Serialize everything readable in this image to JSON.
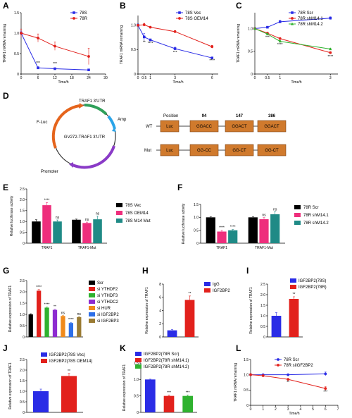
{
  "colors": {
    "blue": "#2a2ce6",
    "red": "#e2211c",
    "green": "#2fb22f",
    "black": "#000000",
    "pink": "#ee2e7c",
    "teal": "#1f8a86",
    "purple": "#8d2bd0",
    "orange": "#f08a1c",
    "lightblue": "#2d6fe8",
    "olive": "#9a7b33",
    "luc": "#d07a2d"
  },
  "chart_data": [
    {
      "id": "A",
      "type": "line",
      "xlabel": "Time/h",
      "ylabel": "TRAF1 mRNA remaining",
      "xlim": [
        0,
        30
      ],
      "ylim": [
        0,
        1.5
      ],
      "xticks": [
        0,
        6,
        12,
        18,
        24,
        30
      ],
      "yticks": [
        0,
        0.5,
        1.0,
        1.5
      ],
      "ytick_labels": [
        "0",
        "0.5",
        "1.0",
        "1.5"
      ],
      "x": [
        0,
        6,
        12,
        24
      ],
      "series": [
        {
          "name": "78S",
          "color": "#2a2ce6",
          "marker": "square",
          "values": [
            1.0,
            0.15,
            0.13,
            0.1
          ],
          "err": [
            0.05,
            0.03,
            0.02,
            0.02
          ]
        },
        {
          "name": "78R",
          "color": "#e2211c",
          "marker": "circle",
          "values": [
            1.0,
            0.88,
            0.68,
            0.43
          ],
          "err": [
            0.1,
            0.1,
            0.1,
            0.2
          ]
        }
      ],
      "annotations": [
        {
          "x": 6,
          "y": 0.24,
          "text": "***"
        },
        {
          "x": 12,
          "y": 0.22,
          "text": "***"
        }
      ]
    },
    {
      "id": "B",
      "type": "line",
      "xlabel": "Time/h",
      "ylabel": "TRAF1 mRNA remaining",
      "xlim": [
        0,
        6.5
      ],
      "ylim": [
        0,
        1.2
      ],
      "xticks": [
        0,
        0.5,
        1,
        3,
        6
      ],
      "yticks": [
        0,
        0.5,
        1.0
      ],
      "ytick_labels": [
        "0",
        "0.5",
        "1.0"
      ],
      "x": [
        0,
        0.5,
        1,
        3,
        6
      ],
      "series": [
        {
          "name": "78S Vec",
          "color": "#2a2ce6",
          "marker": "square",
          "values": [
            1.0,
            0.76,
            0.7,
            0.52,
            0.33
          ],
          "err": [
            0.03,
            0.07,
            0.02,
            0.03,
            0.02
          ]
        },
        {
          "name": "78S OEM14",
          "color": "#e2211c",
          "marker": "circle",
          "values": [
            1.0,
            1.01,
            0.96,
            0.87,
            0.56
          ],
          "err": [
            0.02,
            0.03,
            0.02,
            0.02,
            0.03
          ]
        }
      ],
      "annotations": [
        {
          "x": 0.5,
          "y": 0.63,
          "text": "**"
        },
        {
          "x": 1,
          "y": 0.61,
          "text": "****"
        },
        {
          "x": 3,
          "y": 0.42,
          "text": "***"
        },
        {
          "x": 6,
          "y": 0.25,
          "text": "****"
        }
      ]
    },
    {
      "id": "C",
      "type": "line",
      "xlabel": "Time/h",
      "ylabel": "TRAF1 mRNA remaining",
      "xlim": [
        0,
        3.3
      ],
      "ylim": [
        0,
        1.35
      ],
      "xticks": [
        0,
        0.5,
        1,
        3
      ],
      "yticks": [
        0,
        0.5,
        1.0
      ],
      "ytick_labels": [
        "0",
        "0.5",
        "1.0"
      ],
      "x": [
        0,
        0.5,
        1,
        3
      ],
      "series": [
        {
          "name": "78R Scr",
          "color": "#2a2ce6",
          "marker": "square",
          "values": [
            1.0,
            1.03,
            1.15,
            1.23
          ],
          "err": [
            0.02,
            0.02,
            0.03,
            0.03
          ]
        },
        {
          "name": "78R shM14.1",
          "color": "#e2211c",
          "marker": "circle",
          "values": [
            1.0,
            0.9,
            0.78,
            0.47
          ],
          "err": [
            0.02,
            0.02,
            0.02,
            0.02
          ]
        },
        {
          "name": "78R shM14.2",
          "color": "#2fb22f",
          "marker": "triangle",
          "values": [
            1.0,
            0.88,
            0.72,
            0.55
          ],
          "err": [
            0.02,
            0.02,
            0.02,
            0.02
          ]
        }
      ],
      "annotations": [
        {
          "x": 0.5,
          "y": 0.78,
          "text": "***"
        },
        {
          "x": 1,
          "y": 0.62,
          "text": "****"
        },
        {
          "x": 3,
          "y": 0.36,
          "text": "****"
        }
      ]
    },
    {
      "id": "E",
      "type": "bar",
      "xlabel": "",
      "ylabel": "Relative luciferase activity",
      "ylim": [
        0,
        2.5
      ],
      "yticks": [
        0,
        0.5,
        1.0,
        1.5,
        2.0,
        2.5
      ],
      "ytick_labels": [
        "0",
        "0.5",
        "1.0",
        "1.5",
        "2.0",
        "2.5"
      ],
      "categories": [
        "TRAF1",
        "TRAF1-Mut"
      ],
      "series": [
        {
          "name": "78S Vec",
          "color": "#000000",
          "values": [
            1.0,
            1.08
          ],
          "err": [
            0.08,
            0.03
          ]
        },
        {
          "name": "78S OEM14",
          "color": "#ee2e7c",
          "values": [
            1.75,
            0.93
          ],
          "err": [
            0.12,
            0.04
          ]
        },
        {
          "name": "78S M14 Mut",
          "color": "#1f8a86",
          "values": [
            1.0,
            1.1
          ],
          "err": [
            0.07,
            0.15
          ]
        }
      ],
      "annotations": [
        {
          "category": 0,
          "series": 1,
          "text": "****"
        },
        {
          "category": 0,
          "series": 2,
          "text": "ns"
        },
        {
          "category": 1,
          "series": 1,
          "text": "ns"
        },
        {
          "category": 1,
          "series": 2,
          "text": "ns"
        }
      ]
    },
    {
      "id": "F",
      "type": "bar",
      "xlabel": "",
      "ylabel": "Relative luciferase activity",
      "ylim": [
        0,
        1.5
      ],
      "yticks": [
        0,
        0.5,
        1.0,
        1.5
      ],
      "ytick_labels": [
        "0",
        "0.5",
        "1.0",
        "1.5"
      ],
      "categories": [
        "TRAF1",
        "TRAF1-Mut"
      ],
      "series": [
        {
          "name": "78R Scr",
          "color": "#000000",
          "values": [
            1.0,
            1.0
          ],
          "err": [
            0.02,
            0.03
          ]
        },
        {
          "name": "78R shM14.1",
          "color": "#ee2e7c",
          "values": [
            0.45,
            0.93
          ],
          "err": [
            0.05,
            0.06
          ]
        },
        {
          "name": "78R shM14.2",
          "color": "#1f8a86",
          "values": [
            0.5,
            1.12
          ],
          "err": [
            0.03,
            0.1
          ]
        }
      ],
      "annotations": [
        {
          "category": 0,
          "series": 1,
          "text": "****"
        },
        {
          "category": 0,
          "series": 2,
          "text": "****"
        },
        {
          "category": 1,
          "series": 1,
          "text": "ns"
        },
        {
          "category": 1,
          "series": 2,
          "text": "ns"
        }
      ]
    },
    {
      "id": "G",
      "type": "bar",
      "xlabel": "",
      "ylabel": "Relative expression of TRAF1",
      "ylim": [
        0,
        2.5
      ],
      "yticks": [
        0,
        0.5,
        1.0,
        1.5,
        2.0,
        2.5
      ],
      "ytick_labels": [
        "0",
        "0.5",
        "1.0",
        "1.5",
        "2.0",
        "2.5"
      ],
      "categories": [
        "Scr",
        "si YTHDF2",
        "si YTHDF3",
        "si YTHDC2",
        "si HUR",
        "si IGF2BP2",
        "si IGF2BP3"
      ],
      "colors": [
        "#000000",
        "#e2211c",
        "#2fb22f",
        "#8d2bd0",
        "#f08a1c",
        "#2d6fe8",
        "#9a7b33"
      ],
      "values": [
        1.0,
        2.05,
        1.3,
        1.2,
        0.93,
        0.62,
        0.88
      ],
      "err": [
        0.03,
        0.05,
        0.03,
        0.03,
        0.02,
        0.03,
        0.02
      ],
      "annotations": [
        "",
        "****",
        "****",
        "**",
        "ns",
        "****",
        "ns"
      ]
    },
    {
      "id": "H",
      "type": "bar",
      "xlabel": "",
      "ylabel": "Relative expression of TRAF1",
      "ylim": [
        0,
        8
      ],
      "yticks": [
        0,
        2,
        4,
        6,
        8
      ],
      "ytick_labels": [
        "0",
        "2",
        "4",
        "6",
        "8"
      ],
      "categories": [
        "IgG",
        "IGF2BP2"
      ],
      "colors": [
        "#2a2ce6",
        "#e2211c"
      ],
      "values": [
        1.0,
        5.6
      ],
      "err": [
        0.1,
        0.6
      ],
      "annotations": [
        "",
        "**"
      ]
    },
    {
      "id": "I",
      "type": "bar",
      "xlabel": "",
      "ylabel": "Relative expression of TRAF1",
      "ylim": [
        0,
        2.5
      ],
      "yticks": [
        0,
        0.5,
        1.0,
        1.5,
        2.0,
        2.5
      ],
      "ytick_labels": [
        "0",
        "0.5",
        "1.0",
        "1.5",
        "2.0",
        "2.5"
      ],
      "categories": [
        "IGF2BP2(78S)",
        "IGF2BP2(78R)"
      ],
      "colors": [
        "#2a2ce6",
        "#e2211c"
      ],
      "values": [
        1.0,
        1.8
      ],
      "err": [
        0.15,
        0.1
      ],
      "annotations": [
        "",
        "**"
      ]
    },
    {
      "id": "J",
      "type": "bar",
      "xlabel": "",
      "ylabel": "Relative expression of TRAF1",
      "ylim": [
        0,
        2.5
      ],
      "yticks": [
        0,
        0.5,
        1.0,
        1.5,
        2.0,
        2.5
      ],
      "ytick_labels": [
        "0",
        "0.5",
        "1.0",
        "1.5",
        "2.0",
        "2.5"
      ],
      "categories": [
        "IGF2BP2(78S Vec)",
        "IGF2BP2(78S OEM14)"
      ],
      "colors": [
        "#2a2ce6",
        "#e2211c"
      ],
      "values": [
        1.0,
        1.72
      ],
      "err": [
        0.1,
        0.12
      ],
      "annotations": [
        "",
        "**"
      ]
    },
    {
      "id": "K",
      "type": "bar",
      "xlabel": "",
      "ylabel": "Relative expression of TRAF1",
      "ylim": [
        0,
        1.5
      ],
      "yticks": [
        0,
        0.5,
        1.0,
        1.5
      ],
      "ytick_labels": [
        "0",
        "0.5",
        "1.0",
        "1.5"
      ],
      "categories": [
        "IGF2BP2(78R Scr)",
        "IGF2BP2(78R shM14.1)",
        "IGF2BP2(78R shM14.2)"
      ],
      "colors": [
        "#2a2ce6",
        "#e2211c",
        "#2fb22f"
      ],
      "values": [
        1.0,
        0.5,
        0.5
      ],
      "err": [
        0.01,
        0.03,
        0.03
      ],
      "annotations": [
        "",
        "***",
        "***"
      ]
    },
    {
      "id": "L",
      "type": "line",
      "xlabel": "Time/h",
      "ylabel": "TRAF1 mRNA remaining",
      "xlim": [
        0,
        7
      ],
      "ylim": [
        0,
        1.5
      ],
      "xticks": [
        0,
        1,
        2,
        3,
        4,
        5,
        6,
        7
      ],
      "yticks": [
        0,
        0.5,
        1.0,
        1.5
      ],
      "ytick_labels": [
        "0",
        "0.5",
        "1.0",
        "1.5"
      ],
      "x": [
        0,
        1,
        3,
        6
      ],
      "series": [
        {
          "name": "78R Scr",
          "color": "#2a2ce6",
          "marker": "circle",
          "values": [
            1.0,
            1.0,
            1.0,
            1.03
          ],
          "err": [
            0.03,
            0.03,
            0.02,
            0.06
          ]
        },
        {
          "name": "78R siIGF2BP2",
          "color": "#e2211c",
          "marker": "circle",
          "values": [
            1.0,
            0.97,
            0.85,
            0.55
          ],
          "err": [
            0.04,
            0.03,
            0.02,
            0.06
          ]
        }
      ],
      "annotations": [
        {
          "x": 3,
          "y": 0.72,
          "text": "**"
        },
        {
          "x": 6,
          "y": 0.4,
          "text": "***"
        }
      ]
    }
  ],
  "panel_d": {
    "luc_label": "F-Luc",
    "utr_label": "TRAF1 3'UTR",
    "amp_label": "Amp",
    "plasmid_name": "GV272-TRAF1 3'UTR",
    "promoter_label": "Promoter",
    "position_label": "Position",
    "positions": [
      "94",
      "147",
      "386"
    ],
    "rows": [
      {
        "label": "WT",
        "luc": "Luc",
        "motifs": [
          "GGACC",
          "GGACT",
          "GGACT"
        ]
      },
      {
        "label": "Mut",
        "luc": "Luc",
        "motifs": [
          "GG-CC",
          "GG-CT",
          "GG-CT"
        ]
      }
    ]
  }
}
